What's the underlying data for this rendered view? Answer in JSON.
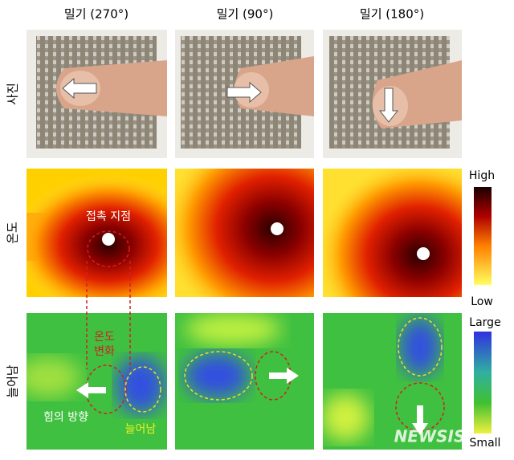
{
  "columns": [
    "밀기 (270°)",
    "밀기 (90°)",
    "밀기 (180°)"
  ],
  "rows": [
    "사진",
    "온도",
    "늘어남"
  ],
  "annotations": {
    "contact_point": "접촉 지점",
    "temp_change": [
      "온도",
      "변화"
    ],
    "force_direction": "힘의 방향",
    "stretch": "늘어남"
  },
  "colorbars": [
    {
      "high": "High",
      "low": "Low"
    },
    {
      "high": "Large",
      "low": "Small"
    }
  ],
  "watermark": "NEWSIS"
}
